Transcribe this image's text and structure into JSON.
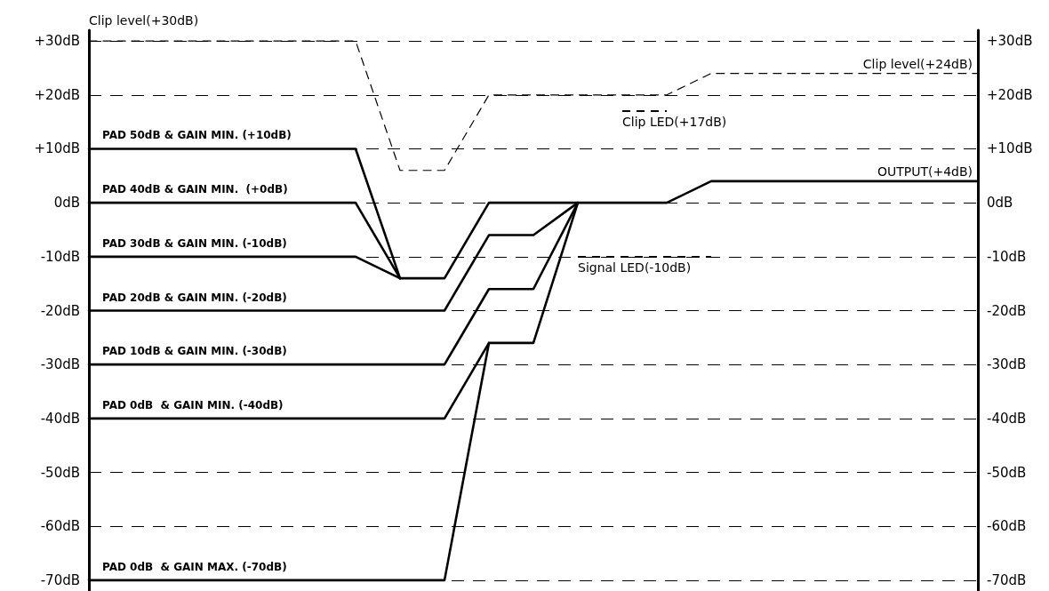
{
  "chart_data": {
    "type": "line",
    "categories": [
      null,
      null,
      null,
      null,
      null,
      null,
      null,
      null,
      null,
      null,
      null,
      null,
      null,
      null,
      null,
      null,
      null,
      null,
      null,
      null,
      null
    ],
    "series": [
      {
        "name": "PAD 50dB & GAIN MIN. (+10dB)",
        "color": "#000000",
        "values": [
          10,
          10,
          10,
          10,
          10,
          10,
          10,
          -14,
          -14,
          0,
          0,
          0,
          0,
          0,
          4,
          4,
          4,
          4,
          4,
          4,
          4
        ]
      },
      {
        "name": "PAD 40dB & GAIN MIN.  (+0dB)",
        "color": "#000000",
        "values": [
          0,
          0,
          0,
          0,
          0,
          0,
          0,
          -14,
          null,
          null,
          null,
          null,
          null,
          null,
          null,
          null,
          null,
          null,
          null,
          null,
          null
        ]
      },
      {
        "name": "PAD 30dB & GAIN MIN. (-10dB)",
        "color": "#000000",
        "values": [
          -10,
          -10,
          -10,
          -10,
          -10,
          -10,
          -10,
          -14,
          null,
          null,
          null,
          null,
          null,
          null,
          null,
          null,
          null,
          null,
          null,
          null,
          null
        ]
      },
      {
        "name": "PAD 20dB & GAIN MIN. (-20dB)",
        "color": "#000000",
        "values": [
          -20,
          -20,
          -20,
          -20,
          -20,
          -20,
          -20,
          -20,
          -20,
          -6,
          -6,
          0,
          null,
          null,
          null,
          null,
          null,
          null,
          null,
          null,
          null
        ]
      },
      {
        "name": "PAD 10dB & GAIN MIN. (-30dB)",
        "color": "#000000",
        "values": [
          -30,
          -30,
          -30,
          -30,
          -30,
          -30,
          -30,
          -30,
          -30,
          -16,
          -16,
          0,
          null,
          null,
          null,
          null,
          null,
          null,
          null,
          null,
          null
        ]
      },
      {
        "name": "PAD 0dB  & GAIN MIN. (-40dB)",
        "color": "#000000",
        "values": [
          -40,
          -40,
          -40,
          -40,
          -40,
          -40,
          -40,
          -40,
          -40,
          -26,
          -26,
          0,
          null,
          null,
          null,
          null,
          null,
          null,
          null,
          null,
          null
        ]
      },
      {
        "name": "PAD 0dB  & GAIN MAX. (-70dB)",
        "color": "#000000",
        "values": [
          -70,
          -70,
          -70,
          -70,
          -70,
          -70,
          -70,
          -70,
          -70,
          -26,
          null,
          null,
          null,
          null,
          null,
          null,
          null,
          null,
          null,
          null,
          null
        ]
      },
      {
        "color": "#000000",
        "line_style": "dashed",
        "values": [
          30,
          30,
          30,
          30,
          30,
          30,
          30,
          6,
          6,
          20,
          20,
          20,
          20,
          20,
          24,
          24,
          24,
          24,
          24,
          24,
          24
        ]
      }
    ],
    "ylim": [
      -72,
      32
    ],
    "yticks": [
      {
        "value": -70,
        "label": "-70dB"
      },
      {
        "value": -60,
        "label": "-60dB"
      },
      {
        "value": -50,
        "label": "-50dB"
      },
      {
        "value": -40,
        "label": "-40dB"
      },
      {
        "value": -30,
        "label": "-30dB"
      },
      {
        "value": -20,
        "label": "-20dB"
      },
      {
        "value": -10,
        "label": "-10dB"
      },
      {
        "value": 0,
        "label": "0dB"
      },
      {
        "value": 10,
        "label": "+10dB"
      },
      {
        "value": 20,
        "label": "+20dB"
      },
      {
        "value": 30,
        "label": "+30dB"
      }
    ],
    "y2lim": [
      -72,
      32
    ],
    "y2ticks": [
      {
        "value": -70,
        "label": "-70dB"
      },
      {
        "value": -60,
        "label": "-60dB"
      },
      {
        "value": -50,
        "label": "-50dB"
      },
      {
        "value": -40,
        "label": "-40dB"
      },
      {
        "value": -30,
        "label": "-30dB"
      },
      {
        "value": -20,
        "label": "-20dB"
      },
      {
        "value": -10,
        "label": "-10dB"
      },
      {
        "value": 0,
        "label": "0dB"
      },
      {
        "value": 10,
        "label": "+10dB"
      },
      {
        "value": 20,
        "label": "+20dB"
      },
      {
        "value": 30,
        "label": "+30dB"
      }
    ],
    "ref_lines": [
      {
        "axis": "y",
        "value": 17,
        "label": "Clip LED(+17dB)",
        "line_style": "dashed"
      },
      {
        "axis": "y",
        "value": -10,
        "label": "Signal LED(-10dB)",
        "line_style": "dashed"
      }
    ],
    "annotations": [
      "Clip level(+30dB)",
      "Clip level(+24dB)",
      "OUTPUT(+4dB)"
    ],
    "grid": "y",
    "legend": false,
    "tick_labels": "y",
    "marker": "none"
  }
}
